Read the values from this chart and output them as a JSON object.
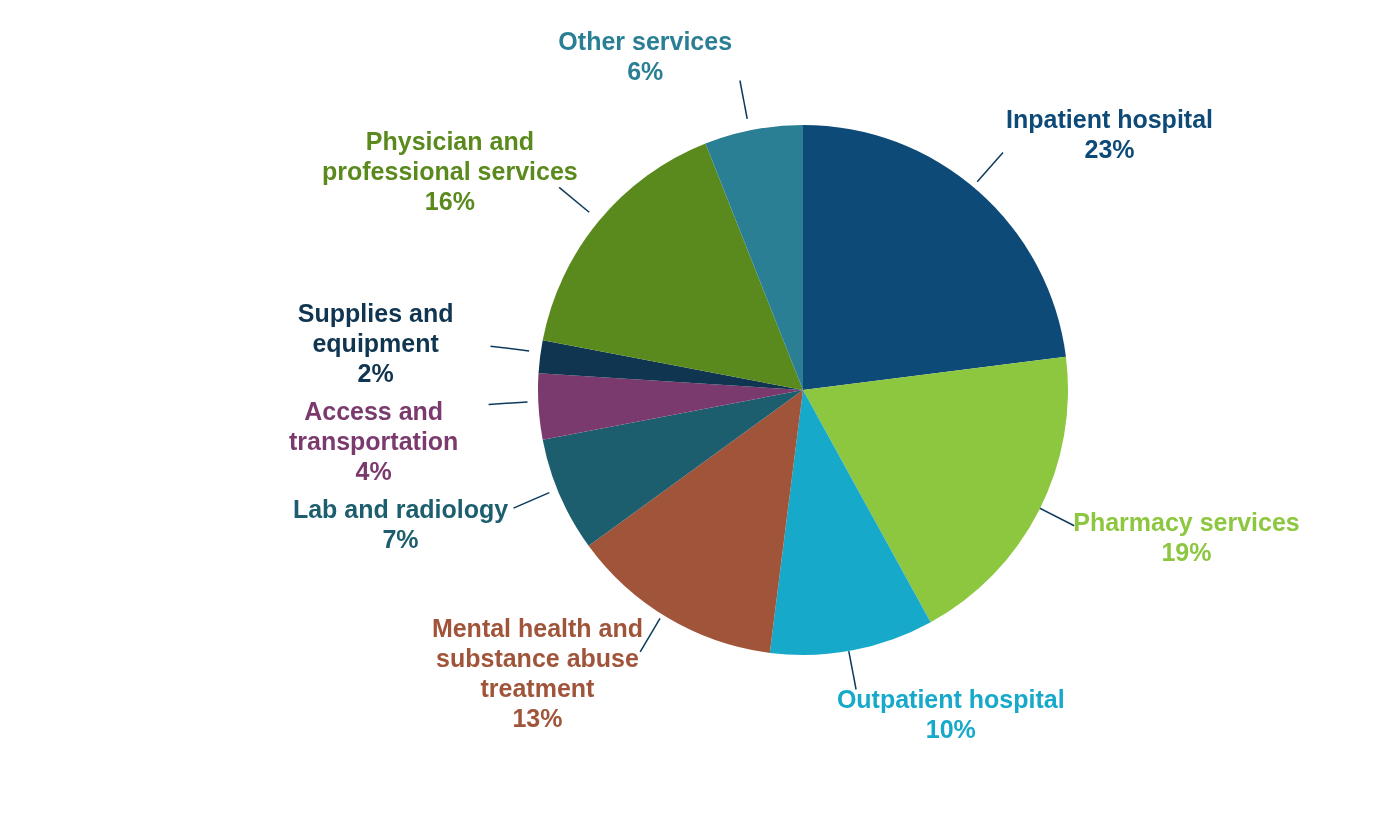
{
  "chart_data": {
    "type": "pie",
    "categories": [
      "Inpatient hospital",
      "Pharmacy services",
      "Outpatient hospital",
      "Mental health and substance abuse treatment",
      "Lab and radiology",
      "Access and transportation",
      "Supplies and equipment",
      "Physician and professional services",
      "Other services"
    ],
    "values": [
      23,
      19,
      10,
      13,
      7,
      4,
      2,
      16,
      6
    ],
    "value_labels": [
      "23%",
      "19%",
      "10%",
      "13%",
      "7%",
      "4%",
      "2%",
      "16%",
      "6%"
    ],
    "colors": [
      "#0d4a78",
      "#8dc63f",
      "#17a9c9",
      "#a0553a",
      "#1c5e6e",
      "#7b3a6e",
      "#0f3550",
      "#5a8a1e",
      "#2a7f94"
    ],
    "legend": false
  }
}
